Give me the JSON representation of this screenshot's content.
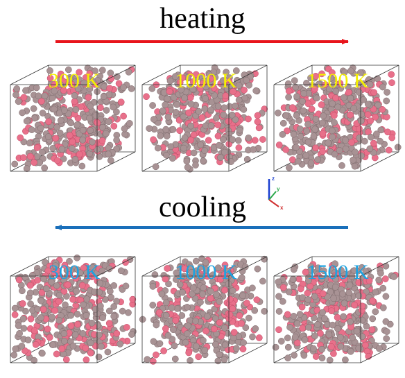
{
  "heating": {
    "title": "heating",
    "panels": [
      "300 K",
      "1000 K",
      "1500 K"
    ]
  },
  "cooling": {
    "title": "cooling",
    "panels": [
      "300 K",
      "1000 K",
      "1500 K"
    ]
  },
  "axes": {
    "z": "z",
    "y": "y",
    "x": "x"
  }
}
